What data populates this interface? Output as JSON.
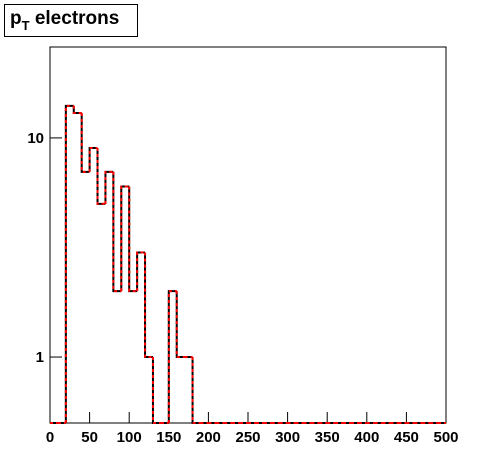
{
  "chart_data": {
    "type": "histogram",
    "title": {
      "main": "p",
      "subscript": "T",
      "rest": " electrons"
    },
    "bins": [
      0,
      10,
      20,
      30,
      40,
      50,
      60,
      70,
      80,
      90,
      100,
      110,
      120,
      130,
      140,
      150,
      160,
      170,
      180,
      190,
      200,
      210,
      220,
      230,
      240,
      250,
      260,
      270,
      280,
      290,
      300,
      310,
      320,
      330,
      340,
      350,
      360,
      370,
      380,
      390,
      400,
      410,
      420,
      430,
      440,
      450,
      460,
      470,
      480,
      490,
      500
    ],
    "series": [
      {
        "color": "#000000",
        "dashed": false,
        "values": [
          0,
          0,
          14,
          13,
          7,
          9,
          5,
          7,
          2,
          6,
          2,
          3,
          1,
          0,
          0,
          2,
          1,
          1,
          0,
          0,
          0,
          0,
          0,
          0,
          0,
          0,
          0,
          0,
          0,
          0,
          0,
          0,
          0,
          0,
          0,
          0,
          0,
          0,
          0,
          0,
          0,
          0,
          0,
          0,
          0,
          0,
          0,
          0,
          0,
          0
        ]
      },
      {
        "color": "#ff0000",
        "dashed": true,
        "values": [
          0,
          0,
          14,
          13,
          7,
          9,
          5,
          7,
          2,
          6,
          2,
          3,
          1,
          0,
          0,
          2,
          1,
          1,
          0,
          0,
          0,
          0,
          0,
          0,
          0,
          0,
          0,
          0,
          0,
          0,
          0,
          0,
          0,
          0,
          0,
          0,
          0,
          0,
          0,
          0,
          0,
          0,
          0,
          0,
          0,
          0,
          0,
          0,
          0,
          0
        ]
      }
    ],
    "xlim": [
      0,
      500
    ],
    "xticks": [
      0,
      50,
      100,
      150,
      200,
      250,
      300,
      350,
      400,
      450,
      500
    ],
    "ylim": [
      0.5,
      26
    ],
    "yticks": [
      1,
      10
    ],
    "log_y": true
  }
}
